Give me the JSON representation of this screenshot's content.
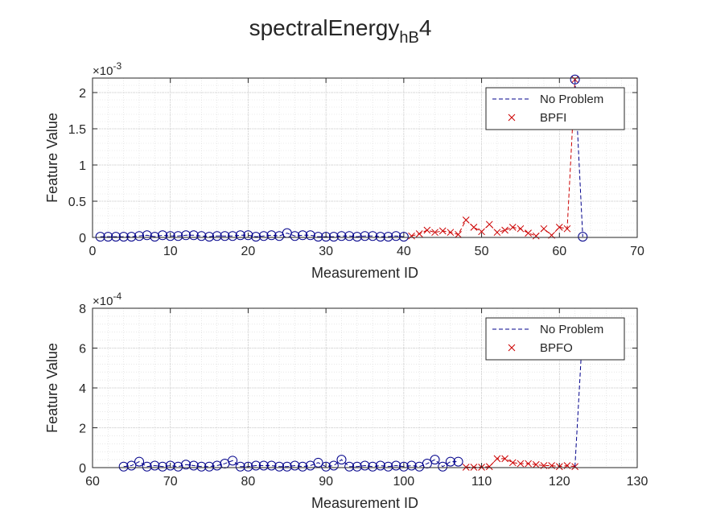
{
  "figure": {
    "title_main": "spectralEnergy",
    "title_sub": "hB",
    "title_tail": "4"
  },
  "colors": {
    "no_problem": "#00008B",
    "fault": "#CC0000",
    "axis": "#262626",
    "minor_grid": "#d9d9d9",
    "major_grid": "#bfbfbf"
  },
  "chart_data": [
    {
      "type": "line",
      "xlabel": "Measurement ID",
      "ylabel": "Feature Value",
      "exponent_label": "×10",
      "exponent": "-3",
      "scale": 0.001,
      "xlim": [
        0,
        70
      ],
      "ylim": [
        0,
        2.2
      ],
      "xticks": [
        0,
        10,
        20,
        30,
        40,
        50,
        60,
        70
      ],
      "yticks": [
        0,
        0.5,
        1,
        1.5,
        2
      ],
      "ytick_labels": [
        "0",
        "0.5",
        "1",
        "1.5",
        "2"
      ],
      "grid": true,
      "legend_position": "top-right",
      "series": [
        {
          "name": "No Problem",
          "style": "dashed-line-with-circles",
          "x": [
            1,
            2,
            3,
            4,
            5,
            6,
            7,
            8,
            9,
            10,
            11,
            12,
            13,
            14,
            15,
            16,
            17,
            18,
            19,
            20,
            21,
            22,
            23,
            24,
            25,
            26,
            27,
            28,
            29,
            30,
            31,
            32,
            33,
            34,
            35,
            36,
            37,
            38,
            39,
            40
          ],
          "y": [
            0.01,
            0.01,
            0.01,
            0.01,
            0.01,
            0.02,
            0.03,
            0.01,
            0.03,
            0.02,
            0.02,
            0.03,
            0.03,
            0.02,
            0.01,
            0.02,
            0.02,
            0.02,
            0.03,
            0.03,
            0.01,
            0.02,
            0.03,
            0.02,
            0.06,
            0.02,
            0.03,
            0.03,
            0.01,
            0.01,
            0.01,
            0.02,
            0.02,
            0.01,
            0.02,
            0.02,
            0.01,
            0.01,
            0.02,
            0.01
          ]
        },
        {
          "name": "BPFI",
          "style": "dashed-line-with-crosses",
          "x": [
            41,
            42,
            43,
            44,
            45,
            46,
            47,
            48,
            49,
            50,
            51,
            52,
            53,
            54,
            55,
            56,
            57,
            58,
            59,
            60,
            61,
            62
          ],
          "y": [
            0.02,
            0.05,
            0.1,
            0.07,
            0.09,
            0.07,
            0.04,
            0.24,
            0.14,
            0.08,
            0.18,
            0.07,
            0.1,
            0.14,
            0.12,
            0.06,
            0.02,
            0.12,
            0.03,
            0.14,
            0.12,
            2.18
          ]
        },
        {
          "name": "",
          "style": "dashed-line-with-circles",
          "x": [
            62,
            63
          ],
          "y": [
            2.18,
            0.01
          ]
        }
      ]
    },
    {
      "type": "line",
      "xlabel": "Measurement ID",
      "ylabel": "Feature Value",
      "exponent_label": "×10",
      "exponent": "-4",
      "scale": 0.0001,
      "xlim": [
        60,
        130
      ],
      "ylim": [
        0,
        8
      ],
      "xticks": [
        60,
        70,
        80,
        90,
        100,
        110,
        120,
        130
      ],
      "yticks": [
        0,
        2,
        4,
        6,
        8
      ],
      "ytick_labels": [
        "0",
        "2",
        "4",
        "6",
        "8"
      ],
      "grid": true,
      "legend_position": "top-right",
      "series": [
        {
          "name": "No Problem",
          "style": "dashed-line-with-circles",
          "x": [
            64,
            65,
            66,
            67,
            68,
            69,
            70,
            71,
            72,
            73,
            74,
            75,
            76,
            77,
            78,
            79,
            80,
            81,
            82,
            83,
            84,
            85,
            86,
            87,
            88,
            89,
            90,
            91,
            92,
            93,
            94,
            95,
            96,
            97,
            98,
            99,
            100,
            101,
            102,
            103,
            104,
            105,
            106,
            107
          ],
          "y": [
            0.05,
            0.1,
            0.3,
            0.05,
            0.1,
            0.05,
            0.1,
            0.05,
            0.15,
            0.1,
            0.05,
            0.05,
            0.1,
            0.2,
            0.35,
            0.05,
            0.05,
            0.1,
            0.1,
            0.1,
            0.05,
            0.05,
            0.1,
            0.05,
            0.1,
            0.25,
            0.05,
            0.1,
            0.4,
            0.05,
            0.05,
            0.1,
            0.05,
            0.1,
            0.05,
            0.1,
            0.05,
            0.1,
            0.05,
            0.2,
            0.4,
            0.05,
            0.3,
            0.3
          ]
        },
        {
          "name": "BPFO",
          "style": "dashed-line-with-crosses",
          "x": [
            108,
            109,
            110,
            111,
            112,
            113,
            114,
            115,
            116,
            117,
            118,
            119,
            120,
            121,
            122
          ],
          "y": [
            0.02,
            0.02,
            0.02,
            0.05,
            0.45,
            0.45,
            0.25,
            0.2,
            0.2,
            0.15,
            0.1,
            0.1,
            0.05,
            0.1,
            0.05
          ]
        },
        {
          "name": "",
          "style": "dashed-line",
          "x": [
            122,
            123
          ],
          "y": [
            0.05,
            7.0
          ]
        }
      ]
    }
  ]
}
